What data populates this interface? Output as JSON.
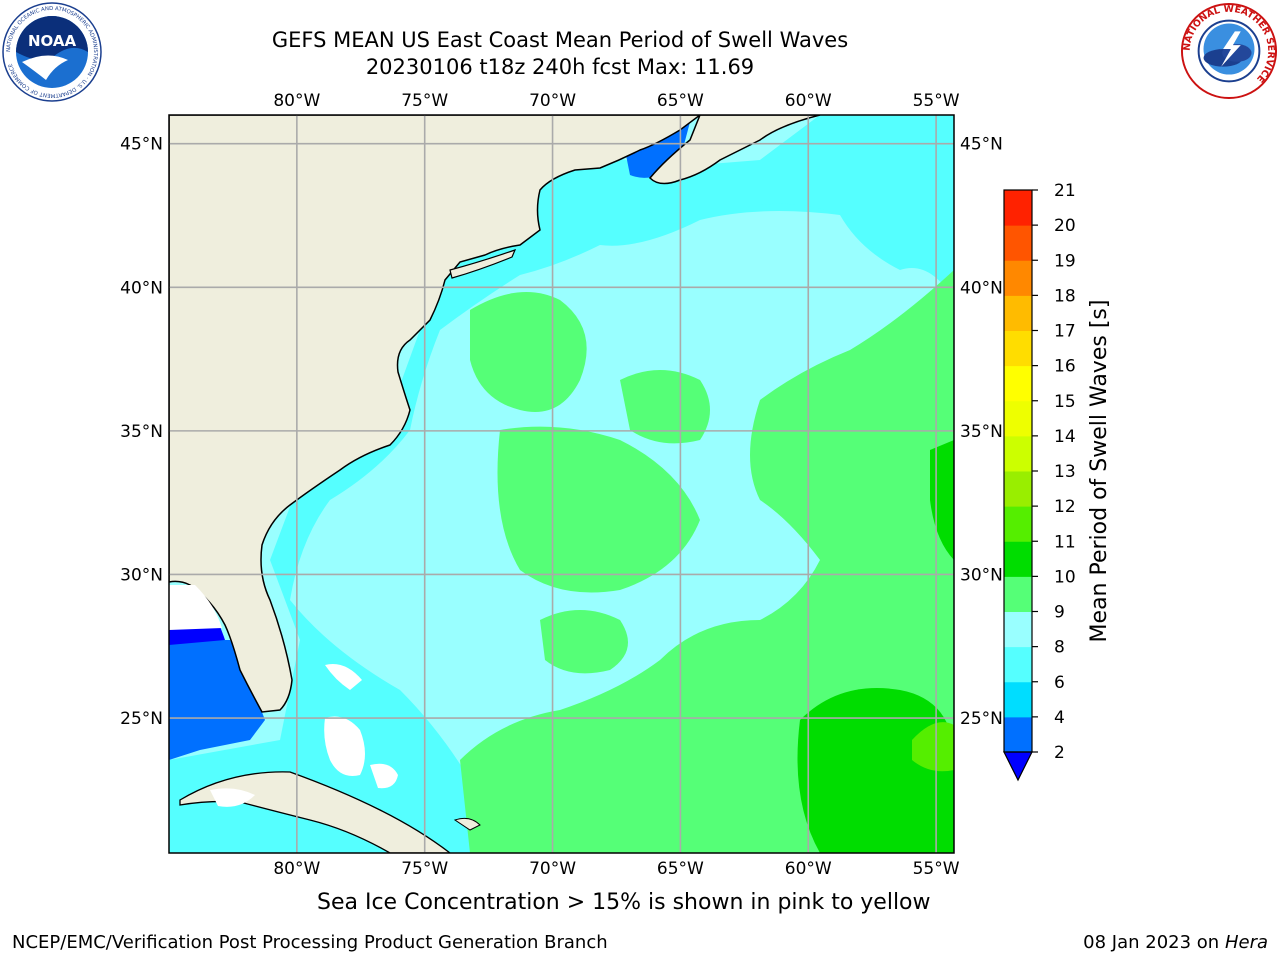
{
  "title": {
    "line1": "GEFS MEAN US East Coast Mean Period of Swell Waves",
    "line2": "20230106 t18z 240h fcst   Max: 11.69"
  },
  "logos": {
    "left": {
      "icon": "noaa-logo-icon",
      "text": "NOAA",
      "ring_text": "NATIONAL OCEANIC AND ATMOSPHERIC ADMINISTRATION · U.S. DEPARTMENT OF COMMERCE"
    },
    "right": {
      "icon": "nws-logo-icon",
      "ring_text": "NATIONAL WEATHER SERVICE"
    }
  },
  "map": {
    "lon_labels": [
      "80°W",
      "75°W",
      "70°W",
      "65°W",
      "60°W",
      "55°W"
    ],
    "lat_labels": [
      "45°N",
      "40°N",
      "35°N",
      "30°N",
      "25°N"
    ],
    "lon_values": [
      -80,
      -75,
      -70,
      -65,
      -60,
      -55
    ],
    "lat_values": [
      45,
      40,
      35,
      30,
      25
    ],
    "lon_range": [
      -85,
      -54.3
    ],
    "lat_range": [
      20.3,
      46
    ],
    "colors": {
      "ocean_default": "#99ffff",
      "land": "#efeedd",
      "grid": "#aaaaaa"
    }
  },
  "colorbar": {
    "label": "Mean Period of Swell Waves [s]",
    "tick_labels": [
      "2",
      "4",
      "6",
      "8",
      "9",
      "10",
      "11",
      "12",
      "13",
      "14",
      "15",
      "16",
      "17",
      "18",
      "19",
      "20",
      "21"
    ],
    "colors": [
      "#0070ff",
      "#00ddff",
      "#55ffff",
      "#99ffff",
      "#55ff77",
      "#00dd00",
      "#55ee00",
      "#99ee00",
      "#ccff00",
      "#eeff00",
      "#ffff00",
      "#ffdd00",
      "#ffbb00",
      "#ff8800",
      "#ff5500",
      "#ff2200"
    ],
    "extend_color": "#0000ff"
  },
  "footer": {
    "note": "Sea Ice Concentration > 15% is shown in pink to yellow",
    "left": "NCEP/EMC/Verification Post Processing Product Generation Branch",
    "right_date": "08 Jan 2023 on",
    "right_host": "Hera"
  }
}
